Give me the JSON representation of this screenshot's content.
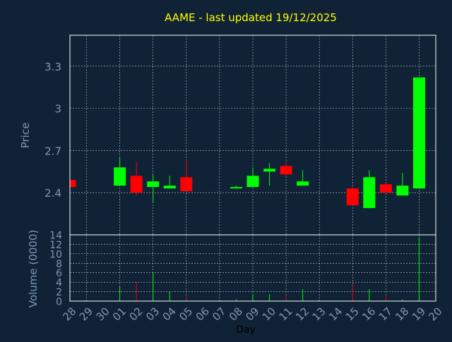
{
  "chart_data": {
    "type": "candlestick",
    "title": "AAME - last updated 19/12/2025",
    "xlabel": "Day",
    "x_ticks": [
      "28",
      "29",
      "30",
      "01",
      "02",
      "03",
      "04",
      "05",
      "06",
      "07",
      "08",
      "09",
      "10",
      "11",
      "12",
      "13",
      "14",
      "15",
      "16",
      "17",
      "18",
      "19",
      "20"
    ],
    "price_panel": {
      "ylabel": "Price",
      "ylim": [
        2.1,
        3.52
      ],
      "yticks": [
        "2.4",
        "2.7",
        "3",
        "3.3"
      ],
      "ytick_values": [
        2.4,
        2.7,
        3.0,
        3.3
      ],
      "candles": [
        {
          "day": "28",
          "open": 2.49,
          "close": 2.44,
          "high": 2.49,
          "low": 2.44
        },
        {
          "day": "01",
          "open": 2.45,
          "close": 2.58,
          "high": 2.65,
          "low": 2.45
        },
        {
          "day": "02",
          "open": 2.52,
          "close": 2.4,
          "high": 2.62,
          "low": 2.38
        },
        {
          "day": "03",
          "open": 2.44,
          "close": 2.48,
          "high": 2.53,
          "low": 2.33
        },
        {
          "day": "04",
          "open": 2.43,
          "close": 2.45,
          "high": 2.52,
          "low": 2.43
        },
        {
          "day": "05",
          "open": 2.51,
          "close": 2.41,
          "high": 2.63,
          "low": 2.41
        },
        {
          "day": "08",
          "open": 2.43,
          "close": 2.44,
          "high": 2.45,
          "low": 2.43
        },
        {
          "day": "09",
          "open": 2.44,
          "close": 2.52,
          "high": 2.58,
          "low": 2.44
        },
        {
          "day": "10",
          "open": 2.55,
          "close": 2.57,
          "high": 2.61,
          "low": 2.45
        },
        {
          "day": "11",
          "open": 2.59,
          "close": 2.53,
          "high": 2.62,
          "low": 2.52
        },
        {
          "day": "12",
          "open": 2.45,
          "close": 2.48,
          "high": 2.56,
          "low": 2.45
        },
        {
          "day": "15",
          "open": 2.43,
          "close": 2.31,
          "high": 2.44,
          "low": 2.31
        },
        {
          "day": "16",
          "open": 2.29,
          "close": 2.51,
          "high": 2.56,
          "low": 2.29
        },
        {
          "day": "17",
          "open": 2.46,
          "close": 2.4,
          "high": 2.47,
          "low": 2.4
        },
        {
          "day": "18",
          "open": 2.38,
          "close": 2.45,
          "high": 2.54,
          "low": 2.38
        },
        {
          "day": "19",
          "open": 2.43,
          "close": 3.22,
          "high": 3.22,
          "low": 2.43
        }
      ]
    },
    "volume_panel": {
      "ylabel": "Volume (0000)",
      "ylim": [
        0,
        14
      ],
      "yticks": [
        "0",
        "2",
        "4",
        "6",
        "8",
        "10",
        "12",
        "14"
      ],
      "ytick_values": [
        0,
        2,
        4,
        6,
        8,
        10,
        12,
        14
      ],
      "volumes": [
        {
          "day": "01",
          "value": 3.0,
          "up": true
        },
        {
          "day": "02",
          "value": 4.0,
          "up": false
        },
        {
          "day": "03",
          "value": 6.0,
          "up": true
        },
        {
          "day": "04",
          "value": 2.0,
          "up": true
        },
        {
          "day": "05",
          "value": 1.0,
          "up": false
        },
        {
          "day": "08",
          "value": 0.4,
          "up": true
        },
        {
          "day": "09",
          "value": 1.5,
          "up": true
        },
        {
          "day": "10",
          "value": 1.5,
          "up": true
        },
        {
          "day": "11",
          "value": 1.0,
          "up": false
        },
        {
          "day": "12",
          "value": 2.5,
          "up": true
        },
        {
          "day": "15",
          "value": 3.5,
          "up": false
        },
        {
          "day": "16",
          "value": 2.5,
          "up": true
        },
        {
          "day": "17",
          "value": 1.0,
          "up": false
        },
        {
          "day": "18",
          "value": 0.4,
          "up": true
        },
        {
          "day": "19",
          "value": 13.5,
          "up": true
        }
      ]
    },
    "grid": true,
    "colors": {
      "background": "#0f2236",
      "up": "#00ff00",
      "down": "#ff0000",
      "title": "#ffff00",
      "axis_text": "#7f99b4",
      "grid": "#ffffff"
    }
  }
}
